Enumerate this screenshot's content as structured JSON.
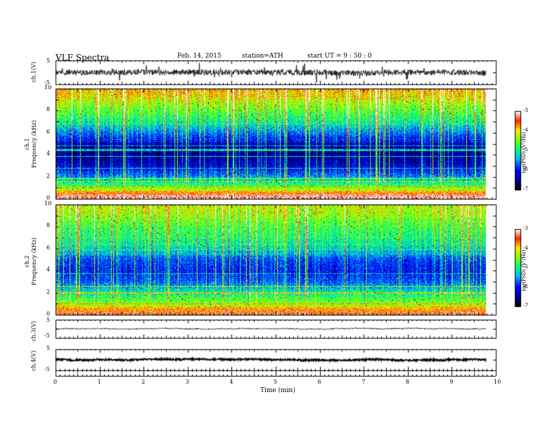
{
  "header": {
    "title": "VLF  Spectra",
    "date": "Feb. 14, 2015",
    "station": "station=ATH",
    "start": "start  UT  =   9 : 50 : 0"
  },
  "axes": {
    "xlabel": "Time  (min)",
    "xticks": [
      "0",
      "1",
      "2",
      "3",
      "4",
      "5",
      "6",
      "7",
      "8",
      "9",
      "10"
    ],
    "ch1_label": "ch.1(V)",
    "ch1_ticks": [
      "5",
      "-5"
    ],
    "spec1_label": "ch.1\nFrequency  (kHz)",
    "spec1_line1": "ch.1",
    "spec1_line2": "Frequency  (kHz)",
    "spec2_line1": "ch.2",
    "spec2_line2": "Frequency  (kHz)",
    "freq_ticks": [
      "0",
      "2",
      "4",
      "6",
      "8",
      "10"
    ],
    "ch3_label": "ch.3(V)",
    "ch3_ticks": [
      "5",
      "-5"
    ],
    "ch4_label": "ch.4(V)",
    "ch4_ticks": [
      "5",
      "-5"
    ],
    "colorbar_label": "log(PSD) (V²/Hz)",
    "colorbar_ticks": [
      "-3",
      "-4",
      "-5",
      "-6",
      "-7"
    ]
  },
  "chart_data": [
    {
      "type": "line",
      "panel": "ch.1 waveform",
      "x_range_min": [
        0,
        9.8
      ],
      "ylim": [
        -5,
        5
      ],
      "ylabel": "ch.1(V)",
      "description_values": {
        "baseline": 0.2,
        "noise_amplitude": 1.5
      }
    },
    {
      "type": "heatmap",
      "panel": "ch.1 spectrogram",
      "xlabel": "Time  (min)",
      "ylabel": "Frequency  (kHz)",
      "x_range_min": [
        0,
        9.8
      ],
      "ylim": [
        0,
        10
      ],
      "zlim": [
        -7,
        -3
      ],
      "zlabel": "log(PSD) (V²/Hz)",
      "rows_logpsd_by_freq_kHz": [
        [
          0.3,
          -3.2
        ],
        [
          1.0,
          -4.5
        ],
        [
          2.0,
          -5.5
        ],
        [
          3.0,
          -6.2
        ],
        [
          4.0,
          -6.5
        ],
        [
          5.0,
          -6.3
        ],
        [
          6.0,
          -5.6
        ],
        [
          7.0,
          -5.0
        ],
        [
          8.0,
          -4.6
        ],
        [
          9.0,
          -4.2
        ],
        [
          10.0,
          -3.8
        ]
      ]
    },
    {
      "type": "heatmap",
      "panel": "ch.2 spectrogram",
      "xlabel": "Time  (min)",
      "ylabel": "Frequency  (kHz)",
      "x_range_min": [
        0,
        9.8
      ],
      "ylim": [
        0,
        10
      ],
      "zlim": [
        -7,
        -3
      ],
      "zlabel": "log(PSD) (V²/Hz)",
      "rows_logpsd_by_freq_kHz": [
        [
          0.3,
          -3.5
        ],
        [
          1.0,
          -4.4
        ],
        [
          2.0,
          -5.0
        ],
        [
          3.0,
          -5.7
        ],
        [
          4.0,
          -6.0
        ],
        [
          5.0,
          -5.8
        ],
        [
          6.0,
          -5.2
        ],
        [
          7.0,
          -4.9
        ],
        [
          8.0,
          -4.7
        ],
        [
          9.0,
          -4.4
        ],
        [
          10.0,
          -4.2
        ]
      ]
    },
    {
      "type": "line",
      "panel": "ch.3 waveform",
      "x_range_min": [
        0,
        9.8
      ],
      "ylim": [
        -5,
        5
      ],
      "ylabel": "ch.3(V)",
      "description_values": {
        "baseline": 0.0,
        "noise_amplitude": 0.2
      }
    },
    {
      "type": "line",
      "panel": "ch.4 waveform",
      "x_range_min": [
        0,
        9.8
      ],
      "ylim": [
        -5,
        5
      ],
      "ylabel": "ch.4(V)",
      "description_values": {
        "baseline": 0.0,
        "noise_amplitude": 0.5
      }
    }
  ]
}
